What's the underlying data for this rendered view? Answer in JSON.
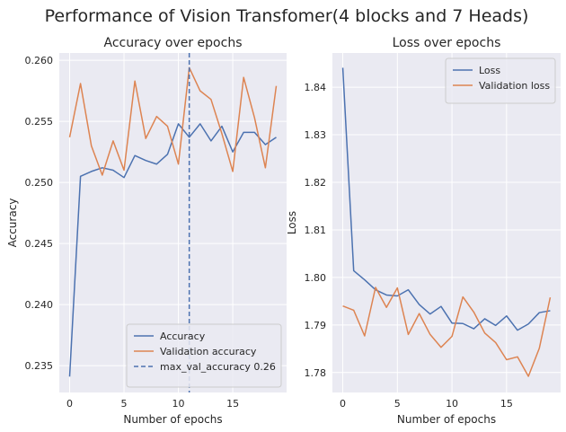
{
  "figure": {
    "suptitle": "Performance of Vision Transfomer(4 blocks and 7 Heads)"
  },
  "colors": {
    "background": "#ffffff",
    "axes_bg": "#eaeaf2",
    "grid": "#ffffff",
    "text": "#262626",
    "blue": "#4c72b0",
    "orange": "#dd8452"
  },
  "chart_data": [
    {
      "type": "line",
      "title": "Accuracy over epochs",
      "xlabel": "Number of epochs",
      "ylabel": "Accuracy",
      "xlim": [
        -0.95,
        19.95
      ],
      "ylim": [
        0.2328,
        0.2606
      ],
      "xticks": [
        0,
        5,
        10,
        15
      ],
      "xtick_labels": [
        "0",
        "5",
        "10",
        "15"
      ],
      "yticks": [
        0.235,
        0.24,
        0.245,
        0.25,
        0.255,
        0.26
      ],
      "ytick_labels": [
        "0.235",
        "0.240",
        "0.245",
        "0.250",
        "0.255",
        "0.260"
      ],
      "grid": true,
      "legend_position": "lower-right",
      "x": [
        0,
        1,
        2,
        3,
        4,
        5,
        6,
        7,
        8,
        9,
        10,
        11,
        12,
        13,
        14,
        15,
        16,
        17,
        18,
        19
      ],
      "series": [
        {
          "name": "Accuracy",
          "color": "#4c72b0",
          "style": "solid",
          "values": [
            0.2341,
            0.2505,
            0.2509,
            0.2512,
            0.251,
            0.2504,
            0.2522,
            0.2518,
            0.2515,
            0.2523,
            0.2548,
            0.2537,
            0.2548,
            0.2534,
            0.2546,
            0.2525,
            0.2541,
            0.2541,
            0.2531,
            0.2537
          ]
        },
        {
          "name": "Validation accuracy",
          "color": "#dd8452",
          "style": "solid",
          "values": [
            0.2537,
            0.2581,
            0.253,
            0.2506,
            0.2534,
            0.251,
            0.2583,
            0.2536,
            0.2554,
            0.2546,
            0.2515,
            0.2594,
            0.2575,
            0.2568,
            0.254,
            0.2509,
            0.2586,
            0.2553,
            0.2512,
            0.2579
          ]
        }
      ],
      "vline": {
        "name": "max_val_accuracy 0.26",
        "x": 11,
        "color": "#4c72b0",
        "style": "dashed"
      }
    },
    {
      "type": "line",
      "title": "Loss over epochs",
      "xlabel": "Number of epochs",
      "ylabel": "Loss",
      "xlim": [
        -0.95,
        19.95
      ],
      "ylim": [
        1.7758,
        1.8472
      ],
      "xticks": [
        0,
        5,
        10,
        15
      ],
      "xtick_labels": [
        "0",
        "5",
        "10",
        "15"
      ],
      "yticks": [
        1.78,
        1.79,
        1.8,
        1.81,
        1.82,
        1.83,
        1.84
      ],
      "ytick_labels": [
        "1.78",
        "1.79",
        "1.80",
        "1.81",
        "1.82",
        "1.83",
        "1.84"
      ],
      "grid": true,
      "legend_position": "upper-right",
      "x": [
        0,
        1,
        2,
        3,
        4,
        5,
        6,
        7,
        8,
        9,
        10,
        11,
        12,
        13,
        14,
        15,
        16,
        17,
        18,
        19
      ],
      "series": [
        {
          "name": "Loss",
          "color": "#4c72b0",
          "style": "solid",
          "values": [
            1.8441,
            1.8014,
            1.7995,
            1.7974,
            1.7963,
            1.7961,
            1.7974,
            1.7943,
            1.7923,
            1.7939,
            1.7904,
            1.7903,
            1.7892,
            1.7913,
            1.7899,
            1.7919,
            1.7889,
            1.7902,
            1.7926,
            1.793
          ]
        },
        {
          "name": "Validation loss",
          "color": "#dd8452",
          "style": "solid",
          "values": [
            1.794,
            1.7931,
            1.7877,
            1.7979,
            1.7937,
            1.7978,
            1.788,
            1.7924,
            1.788,
            1.7853,
            1.7876,
            1.7959,
            1.7927,
            1.7883,
            1.7863,
            1.7827,
            1.7833,
            1.7792,
            1.7851,
            1.7958
          ]
        }
      ]
    }
  ]
}
